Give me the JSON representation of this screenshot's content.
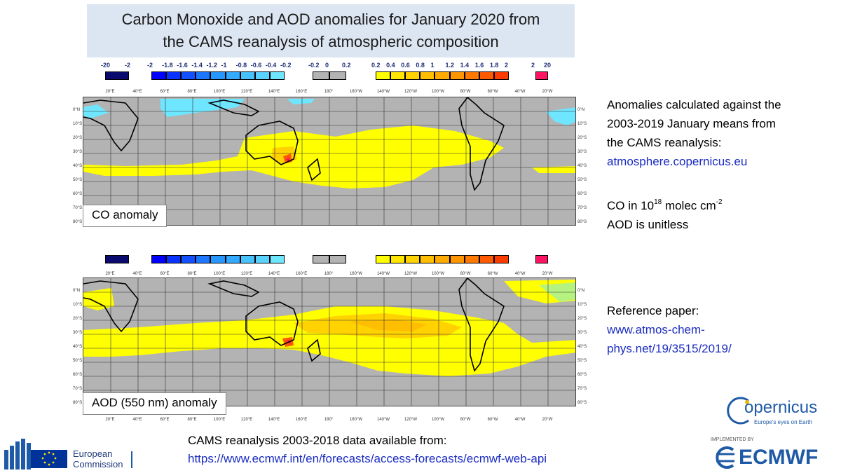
{
  "title": {
    "line1": "Carbon Monoxide and AOD anomalies for January 2020 from",
    "line2": "the CAMS reanalysis of atmospheric composition"
  },
  "legend": {
    "groups": [
      {
        "labels": [
          "-20",
          "-2"
        ],
        "colors": [
          "#0a0a6e"
        ]
      },
      {
        "labels": [
          "-2",
          "-1.8",
          "-1.6",
          "-1.4",
          "-1.2",
          "-1",
          "-0.8",
          "-0.6",
          "-0.4",
          "-0.2"
        ],
        "colors": [
          "#0000ff",
          "#0a32ff",
          "#1450ff",
          "#1e78ff",
          "#2896ff",
          "#32aaff",
          "#46c3ff",
          "#5ad2ff",
          "#6ee6ff"
        ]
      },
      {
        "labels": [
          "-0.2",
          "0",
          "0.2"
        ],
        "colors": [
          "#b3b3b3",
          "#b3b3b3"
        ]
      },
      {
        "labels": [
          "0.2",
          "0.4",
          "0.6",
          "0.8",
          "1",
          "1.2",
          "1.4",
          "1.6",
          "1.8",
          "2"
        ],
        "colors": [
          "#ffff00",
          "#ffe600",
          "#ffd200",
          "#ffbe00",
          "#ffaa00",
          "#ff9600",
          "#ff7800",
          "#ff5a00",
          "#ff3c00"
        ]
      },
      {
        "labels": [
          "2",
          "20"
        ],
        "colors": [
          "#ff1464"
        ]
      }
    ]
  },
  "map_axes": {
    "lon_ticks": [
      "20°E",
      "40°E",
      "60°E",
      "80°E",
      "100°E",
      "120°E",
      "140°E",
      "160°E",
      "180°",
      "160°W",
      "140°W",
      "120°W",
      "100°W",
      "80°W",
      "60°W",
      "40°W",
      "20°W"
    ],
    "lat_ticks": [
      "0°N",
      "10°S",
      "20°S",
      "30°S",
      "40°S",
      "50°S",
      "60°S",
      "70°S",
      "80°S"
    ]
  },
  "maps": {
    "co": {
      "label": "CO anomaly"
    },
    "aod": {
      "label": "AOD (550 nm) anomaly"
    }
  },
  "side": {
    "line1": "Anomalies calculated against the",
    "line2": "2003-2019 January means from",
    "line3": "the CAMS reanalysis:",
    "link1": "atmosphere.copernicus.eu",
    "co_prefix": "CO in 10",
    "co_exp": "18",
    "co_mid": " molec cm",
    "co_exp2": "-2",
    "aod_line": "AOD is unitless",
    "ref_title": "Reference paper:",
    "ref_link1": "www.atmos-chem-",
    "ref_link2": "phys.net/19/3515/2019/"
  },
  "bottom": {
    "line1": "CAMS reanalysis 2003-2018  data available from:",
    "link": "https://www.ecmwf.int/en/forecasts/access-forecasts/ecmwf-web-api"
  },
  "logos": {
    "eu_line1": "European",
    "eu_line2": "Commission",
    "copernicus": "opernicus",
    "copernicus_tag": "Europe's eyes on Earth",
    "ecmwf_implemented": "IMPLEMENTED BY",
    "ecmwf_name": "ECMWF"
  },
  "colors": {
    "title_bg": "#dce6f2",
    "link": "#1b2cc1",
    "grey": "#b3b3b3",
    "yellow": "#ffff00",
    "orange": "#ffaa00",
    "cyan": "#6ee6ff",
    "ecmwf_blue": "#1f5aa6"
  }
}
